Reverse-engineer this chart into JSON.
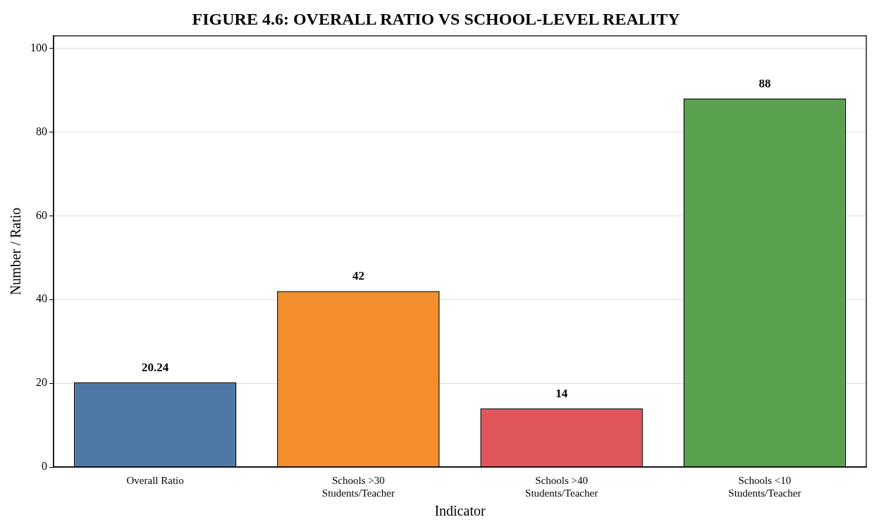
{
  "chart_data": {
    "type": "bar",
    "title": "FIGURE 4.6: OVERALL RATIO VS SCHOOL-LEVEL REALITY",
    "xlabel": "Indicator",
    "ylabel": "Number / Ratio",
    "categories": [
      "Overall Ratio",
      "Schools >30\nStudents/Teacher",
      "Schools >40\nStudents/Teacher",
      "Schools <10\nStudents/Teacher"
    ],
    "values": [
      20.24,
      42,
      14,
      88
    ],
    "colors": [
      "#4e79a7",
      "#f28e2b",
      "#e15759",
      "#59a14f"
    ],
    "ylim": [
      0,
      103
    ],
    "yticks": [
      0,
      20,
      40,
      60,
      80,
      100
    ],
    "grid": "y",
    "data_labels": true,
    "legend": false
  }
}
